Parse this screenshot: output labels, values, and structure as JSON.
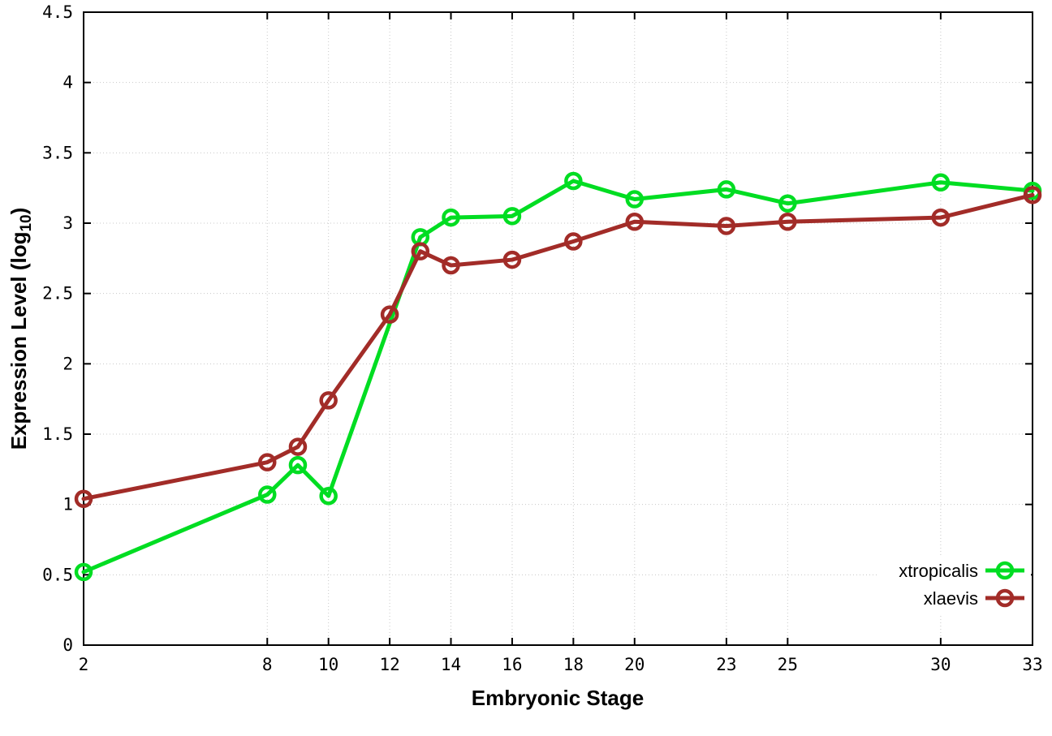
{
  "chart_data": {
    "type": "line",
    "title": "",
    "xlabel": "Embryonic Stage",
    "ylabel": "Expression Level (log10)",
    "ylabel_parts": {
      "pre": "Expression Level (log",
      "sub": "10",
      "post": ")"
    },
    "xlim": [
      2,
      33
    ],
    "ylim": [
      0,
      4.5
    ],
    "x_ticks": [
      2,
      8,
      10,
      12,
      14,
      16,
      18,
      20,
      23,
      25,
      30,
      33
    ],
    "y_ticks": [
      0,
      0.5,
      1,
      1.5,
      2,
      2.5,
      3,
      3.5,
      4,
      4.5
    ],
    "grid": true,
    "grid_color": "#c8c8c8",
    "frame_color": "#000000",
    "background": "#ffffff",
    "legend_position": "bottom-right",
    "series": [
      {
        "name": "xtropicalis",
        "color": "#00dd22",
        "x": [
          2,
          8,
          9,
          10,
          13,
          14,
          16,
          18,
          20,
          23,
          25,
          30,
          33
        ],
        "y": [
          0.52,
          1.07,
          1.28,
          1.06,
          2.9,
          3.04,
          3.05,
          3.3,
          3.17,
          3.24,
          3.14,
          3.29,
          3.23
        ]
      },
      {
        "name": "xlaevis",
        "color": "#a22c28",
        "x": [
          2,
          8,
          9,
          10,
          12,
          13,
          14,
          16,
          18,
          20,
          23,
          25,
          30,
          33
        ],
        "y": [
          1.04,
          1.3,
          1.41,
          1.74,
          2.35,
          2.8,
          2.7,
          2.74,
          2.87,
          3.01,
          2.98,
          3.01,
          3.04,
          3.2
        ]
      }
    ]
  }
}
